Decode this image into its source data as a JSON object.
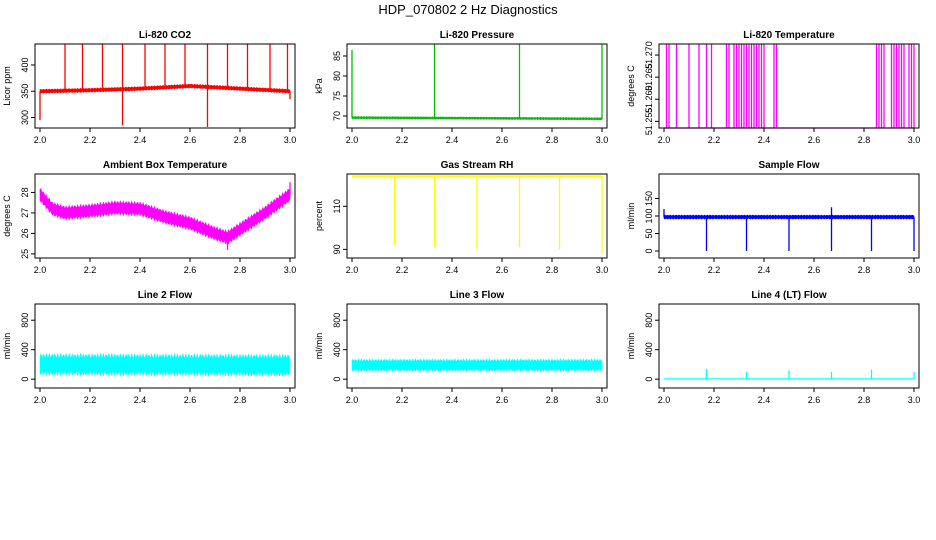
{
  "title": "HDP_070802  2 Hz Diagnostics",
  "chart_data": [
    {
      "type": "line",
      "title": "Li-820 CO2",
      "ylabel": "Licor ppm",
      "color": "#ff0000",
      "xlim": [
        1.98,
        3.02
      ],
      "ylim": [
        280,
        440
      ],
      "xticks": [
        "2.0",
        "2.2",
        "2.4",
        "2.6",
        "2.8",
        "3.0"
      ],
      "xtick_values": [
        2.0,
        2.2,
        2.4,
        2.6,
        2.8,
        3.0
      ],
      "yticks": [
        "300",
        "350",
        "400"
      ],
      "ytick_values": [
        300,
        350,
        400
      ],
      "baseline": [
        [
          2.0,
          350
        ],
        [
          2.2,
          352
        ],
        [
          2.4,
          355
        ],
        [
          2.6,
          360
        ],
        [
          2.8,
          355
        ],
        [
          3.0,
          350
        ]
      ],
      "band": 4,
      "spikes": [
        [
          2.1,
          440
        ],
        [
          2.17,
          440
        ],
        [
          2.25,
          440
        ],
        [
          2.33,
          440
        ],
        [
          2.42,
          440
        ],
        [
          2.5,
          440
        ],
        [
          2.58,
          440
        ],
        [
          2.67,
          440
        ],
        [
          2.75,
          440
        ],
        [
          2.83,
          440
        ],
        [
          2.92,
          440
        ],
        [
          2.99,
          440
        ]
      ],
      "dips": [
        [
          2.0,
          295
        ],
        [
          2.33,
          285
        ],
        [
          2.67,
          282
        ],
        [
          3.0,
          335
        ]
      ]
    },
    {
      "type": "line",
      "title": "Li-820 Pressure",
      "ylabel": "kPa",
      "color": "#00c000",
      "xlim": [
        1.98,
        3.02
      ],
      "ylim": [
        67,
        88
      ],
      "xticks": [
        "2.0",
        "2.2",
        "2.4",
        "2.6",
        "2.8",
        "3.0"
      ],
      "xtick_values": [
        2.0,
        2.2,
        2.4,
        2.6,
        2.8,
        3.0
      ],
      "yticks": [
        "70",
        "75",
        "80",
        "85"
      ],
      "ytick_values": [
        70,
        75,
        80,
        85
      ],
      "baseline": [
        [
          2.0,
          69.6
        ],
        [
          3.0,
          69.3
        ]
      ],
      "band": 0.3,
      "spikes": [
        [
          2.0,
          86.5
        ],
        [
          2.33,
          88
        ],
        [
          2.67,
          88
        ],
        [
          3.0,
          88
        ]
      ],
      "dips": []
    },
    {
      "type": "line",
      "title": "Li-820 Temperature",
      "ylabel": "degrees C",
      "color": "#ff00ff",
      "xlim": [
        1.98,
        3.02
      ],
      "ylim": [
        51.2535,
        51.2725
      ],
      "xticks": [
        "2.0",
        "2.2",
        "2.4",
        "2.6",
        "2.8",
        "3.0"
      ],
      "xtick_values": [
        2.0,
        2.2,
        2.4,
        2.6,
        2.8,
        3.0
      ],
      "yticks": [
        "51.255",
        "51.260",
        "51.265",
        "51.270"
      ],
      "ytick_values": [
        51.255,
        51.26,
        51.265,
        51.27
      ],
      "baseline": [
        [
          2.0,
          51.2535
        ],
        [
          3.0,
          51.2535
        ]
      ],
      "band": 0,
      "spikes": [
        [
          2.01,
          51.2725
        ],
        [
          2.02,
          51.2725
        ],
        [
          2.05,
          51.2725
        ],
        [
          2.1,
          51.2725
        ],
        [
          2.14,
          51.2725
        ],
        [
          2.17,
          51.2725
        ],
        [
          2.19,
          51.2725
        ],
        [
          2.25,
          51.2725
        ],
        [
          2.26,
          51.2725
        ],
        [
          2.28,
          51.2725
        ],
        [
          2.29,
          51.2725
        ],
        [
          2.3,
          51.2725
        ],
        [
          2.31,
          51.2725
        ],
        [
          2.32,
          51.2725
        ],
        [
          2.33,
          51.2725
        ],
        [
          2.34,
          51.2725
        ],
        [
          2.35,
          51.2725
        ],
        [
          2.36,
          51.2725
        ],
        [
          2.37,
          51.2725
        ],
        [
          2.38,
          51.2725
        ],
        [
          2.39,
          51.2725
        ],
        [
          2.4,
          51.2725
        ],
        [
          2.44,
          51.2725
        ],
        [
          2.45,
          51.2725
        ],
        [
          2.85,
          51.2725
        ],
        [
          2.86,
          51.2725
        ],
        [
          2.87,
          51.2725
        ],
        [
          2.88,
          51.2725
        ],
        [
          2.91,
          51.2725
        ],
        [
          2.92,
          51.2725
        ],
        [
          2.93,
          51.2725
        ],
        [
          2.94,
          51.2725
        ],
        [
          2.95,
          51.2725
        ],
        [
          2.96,
          51.2725
        ],
        [
          2.98,
          51.2725
        ],
        [
          2.99,
          51.2725
        ],
        [
          3.0,
          51.2725
        ]
      ],
      "dips": []
    },
    {
      "type": "line",
      "title": "Ambient Box Temperature",
      "ylabel": "degrees C",
      "color": "#ff00ff",
      "xlim": [
        1.98,
        3.02
      ],
      "ylim": [
        24.8,
        28.9
      ],
      "xticks": [
        "2.0",
        "2.2",
        "2.4",
        "2.6",
        "2.8",
        "3.0"
      ],
      "xtick_values": [
        2.0,
        2.2,
        2.4,
        2.6,
        2.8,
        3.0
      ],
      "yticks": [
        "25",
        "26",
        "27",
        "28"
      ],
      "ytick_values": [
        25,
        26,
        27,
        28
      ],
      "baseline": [
        [
          2.0,
          27.9
        ],
        [
          2.05,
          27.2
        ],
        [
          2.1,
          27.0
        ],
        [
          2.2,
          27.1
        ],
        [
          2.3,
          27.25
        ],
        [
          2.4,
          27.2
        ],
        [
          2.5,
          26.8
        ],
        [
          2.6,
          26.5
        ],
        [
          2.7,
          26.0
        ],
        [
          2.75,
          25.8
        ],
        [
          2.8,
          26.2
        ],
        [
          2.9,
          27.0
        ],
        [
          3.0,
          27.9
        ]
      ],
      "band": 0.35,
      "spikes": [
        [
          3.0,
          28.5
        ]
      ],
      "dips": [
        [
          2.75,
          25.2
        ]
      ]
    },
    {
      "type": "line",
      "title": "Gas Stream RH",
      "ylabel": "percent",
      "color": "#ffff00",
      "xlim": [
        1.98,
        3.02
      ],
      "ylim": [
        86,
        125
      ],
      "xticks": [
        "2.0",
        "2.2",
        "2.4",
        "2.6",
        "2.8",
        "3.0"
      ],
      "xtick_values": [
        2.0,
        2.2,
        2.4,
        2.6,
        2.8,
        3.0
      ],
      "yticks": [
        "90",
        "110"
      ],
      "ytick_values": [
        90,
        110
      ],
      "baseline": [
        [
          2.0,
          124
        ],
        [
          3.0,
          124
        ]
      ],
      "band": 0.3,
      "spikes": [],
      "dips": [
        [
          2.17,
          92
        ],
        [
          2.33,
          91
        ],
        [
          2.5,
          90
        ],
        [
          2.67,
          91
        ],
        [
          2.83,
          90
        ],
        [
          3.0,
          88
        ]
      ]
    },
    {
      "type": "line",
      "title": "Sample Flow",
      "ylabel": "ml/min",
      "color": "#0000ff",
      "xlim": [
        1.98,
        3.02
      ],
      "ylim": [
        -20,
        220
      ],
      "xticks": [
        "2.0",
        "2.2",
        "2.4",
        "2.6",
        "2.8",
        "3.0"
      ],
      "xtick_values": [
        2.0,
        2.2,
        2.4,
        2.6,
        2.8,
        3.0
      ],
      "yticks": [
        "0",
        "50",
        "100",
        "150"
      ],
      "ytick_values": [
        0,
        50,
        100,
        150
      ],
      "baseline": [
        [
          2.0,
          97
        ],
        [
          3.0,
          97
        ]
      ],
      "band": 6,
      "spikes": [
        [
          2.0,
          120
        ],
        [
          2.67,
          125
        ]
      ],
      "dips": [
        [
          2.17,
          0
        ],
        [
          2.33,
          0
        ],
        [
          2.5,
          0
        ],
        [
          2.67,
          0
        ],
        [
          2.83,
          0
        ],
        [
          3.0,
          0
        ]
      ]
    },
    {
      "type": "line",
      "title": "Line 2 Flow",
      "ylabel": "ml/min",
      "color": "#00ffff",
      "xlim": [
        1.98,
        3.02
      ],
      "ylim": [
        -120,
        1020
      ],
      "xticks": [
        "2.0",
        "2.2",
        "2.4",
        "2.6",
        "2.8",
        "3.0"
      ],
      "xtick_values": [
        2.0,
        2.2,
        2.4,
        2.6,
        2.8,
        3.0
      ],
      "yticks": [
        "0",
        "400",
        "800"
      ],
      "ytick_values": [
        0,
        400,
        800
      ],
      "baseline": [
        [
          2.0,
          200
        ],
        [
          3.0,
          190
        ]
      ],
      "band": 150,
      "spikes": [],
      "dips": []
    },
    {
      "type": "line",
      "title": "Line 3 Flow",
      "ylabel": "ml/min",
      "color": "#00ffff",
      "xlim": [
        1.98,
        3.02
      ],
      "ylim": [
        -120,
        1020
      ],
      "xticks": [
        "2.0",
        "2.2",
        "2.4",
        "2.6",
        "2.8",
        "3.0"
      ],
      "xtick_values": [
        2.0,
        2.2,
        2.4,
        2.6,
        2.8,
        3.0
      ],
      "yticks": [
        "0",
        "400",
        "800"
      ],
      "ytick_values": [
        0,
        400,
        800
      ],
      "baseline": [
        [
          2.0,
          190
        ],
        [
          3.0,
          190
        ]
      ],
      "band": 85,
      "spikes": [],
      "dips": []
    },
    {
      "type": "line",
      "title": "Line 4 (LT) Flow",
      "ylabel": "ml/min",
      "color": "#00ffff",
      "xlim": [
        1.98,
        3.02
      ],
      "ylim": [
        -120,
        1020
      ],
      "xticks": [
        "2.0",
        "2.2",
        "2.4",
        "2.6",
        "2.8",
        "3.0"
      ],
      "xtick_values": [
        2.0,
        2.2,
        2.4,
        2.6,
        2.8,
        3.0
      ],
      "yticks": [
        "0",
        "400",
        "800"
      ],
      "ytick_values": [
        0,
        400,
        800
      ],
      "baseline": [
        [
          2.0,
          5
        ],
        [
          3.0,
          5
        ]
      ],
      "band": 0,
      "spikes": [
        [
          2.17,
          140
        ],
        [
          2.33,
          100
        ],
        [
          2.5,
          120
        ],
        [
          2.67,
          100
        ],
        [
          2.83,
          130
        ],
        [
          3.0,
          100
        ]
      ],
      "dips": []
    }
  ]
}
